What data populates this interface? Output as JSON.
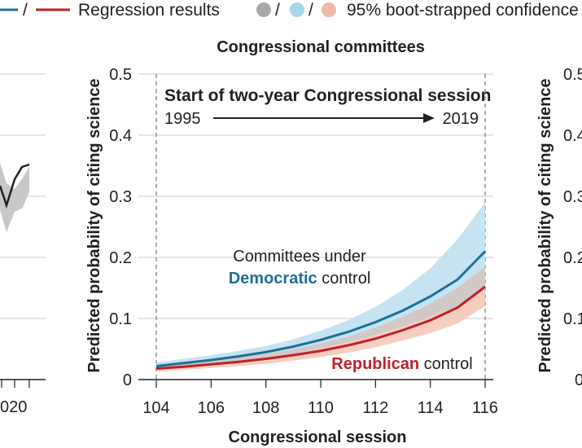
{
  "legend": {
    "line_sep": "/",
    "regression_label": "Regression results",
    "ci_sep_1": "/",
    "ci_sep_2": "/",
    "ci_label": "95% boot-strapped confidence"
  },
  "left_panel": {
    "x_tick": "020"
  },
  "right_panel": {
    "ylabel": "Predicted probability of citing science",
    "y_tick_partials": [
      "0.5",
      "0.4",
      "0.3",
      "0.2",
      "0.1",
      "0"
    ]
  },
  "colors": {
    "democratic": "#1f6f96",
    "democratic_band": "#bfe0ef",
    "republican": "#c0202a",
    "republican_band": "#f4c6b6",
    "gray_line": "#222222",
    "gray_band": "#c8c8c8",
    "grid": "#cccccc"
  },
  "chart_data": {
    "type": "line",
    "title": "Congressional committees",
    "xlabel": "Congressional session",
    "ylabel": "Predicted probability of citing science",
    "xlim": [
      104,
      116
    ],
    "ylim": [
      0,
      0.5
    ],
    "x_ticks": [
      104,
      106,
      108,
      110,
      112,
      114,
      116
    ],
    "y_ticks": [
      0,
      0.1,
      0.2,
      0.3,
      0.4,
      0.5
    ],
    "y_tick_labels": [
      "0",
      "0.1",
      "0.2",
      "0.3",
      "0.4",
      "0.5"
    ],
    "grid": "horizontal",
    "x": [
      104,
      105,
      106,
      107,
      108,
      109,
      110,
      111,
      112,
      113,
      114,
      115,
      116
    ],
    "series": [
      {
        "name": "Democratic",
        "values": [
          0.022,
          0.027,
          0.032,
          0.038,
          0.045,
          0.054,
          0.065,
          0.078,
          0.094,
          0.113,
          0.136,
          0.164,
          0.21
        ],
        "lower": [
          0.016,
          0.02,
          0.024,
          0.029,
          0.035,
          0.042,
          0.051,
          0.061,
          0.073,
          0.087,
          0.103,
          0.12,
          0.15
        ],
        "upper": [
          0.028,
          0.034,
          0.04,
          0.047,
          0.055,
          0.066,
          0.08,
          0.097,
          0.119,
          0.147,
          0.182,
          0.23,
          0.29
        ]
      },
      {
        "name": "Republican",
        "values": [
          0.018,
          0.021,
          0.025,
          0.029,
          0.034,
          0.04,
          0.047,
          0.056,
          0.067,
          0.081,
          0.097,
          0.118,
          0.152
        ],
        "lower": [
          0.013,
          0.016,
          0.019,
          0.022,
          0.026,
          0.031,
          0.037,
          0.044,
          0.053,
          0.064,
          0.076,
          0.092,
          0.12
        ],
        "upper": [
          0.023,
          0.027,
          0.031,
          0.036,
          0.042,
          0.05,
          0.059,
          0.07,
          0.085,
          0.103,
          0.124,
          0.15,
          0.185
        ]
      }
    ],
    "annotations": {
      "session_header": "Start of two-year Congressional session",
      "start_year": "1995",
      "end_year": "2019",
      "dem_line1": "Committees under",
      "dem_bold": "Democratic",
      "dem_rest": " control",
      "rep_bold": "Republican",
      "rep_rest": " control"
    }
  }
}
